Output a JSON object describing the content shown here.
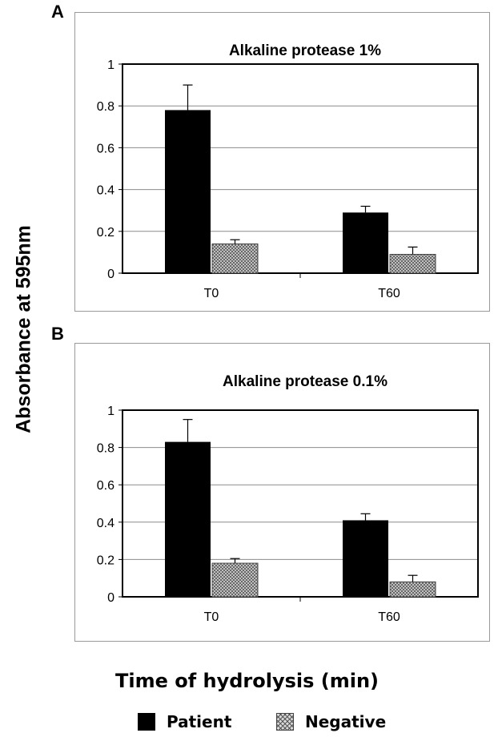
{
  "figure": {
    "ylabel": "Absorbance at 595nm",
    "xlabel": "Time of hydrolysis (min)"
  },
  "legend": [
    {
      "name": "Patient",
      "color": "#000000",
      "pattern": "solid"
    },
    {
      "name": "Negative",
      "color": "#cccccc",
      "pattern": "crosshatch"
    }
  ],
  "chart_data": [
    {
      "type": "bar",
      "panel": "A",
      "title": "Alkaline protease 1%",
      "categories": [
        "T0",
        "T60"
      ],
      "series": [
        {
          "name": "Patient",
          "values": [
            0.78,
            0.29
          ],
          "errors": [
            0.12,
            0.03
          ]
        },
        {
          "name": "Negative",
          "values": [
            0.14,
            0.09
          ],
          "errors": [
            0.02,
            0.035
          ]
        }
      ],
      "yticks": [
        "0",
        "0.2",
        "0.4",
        "0.6",
        "0.8",
        "1"
      ],
      "ylim": [
        0,
        1
      ],
      "grid": true,
      "legend_position": "bottom"
    },
    {
      "type": "bar",
      "panel": "B",
      "title": "Alkaline protease 0.1%",
      "categories": [
        "T0",
        "T60"
      ],
      "series": [
        {
          "name": "Patient",
          "values": [
            0.83,
            0.41
          ],
          "errors": [
            0.12,
            0.035
          ]
        },
        {
          "name": "Negative",
          "values": [
            0.18,
            0.08
          ],
          "errors": [
            0.025,
            0.035
          ]
        }
      ],
      "yticks": [
        "0",
        "0.2",
        "0.4",
        "0.6",
        "0.8",
        "1"
      ],
      "ylim": [
        0,
        1
      ],
      "grid": true,
      "legend_position": "bottom"
    }
  ]
}
